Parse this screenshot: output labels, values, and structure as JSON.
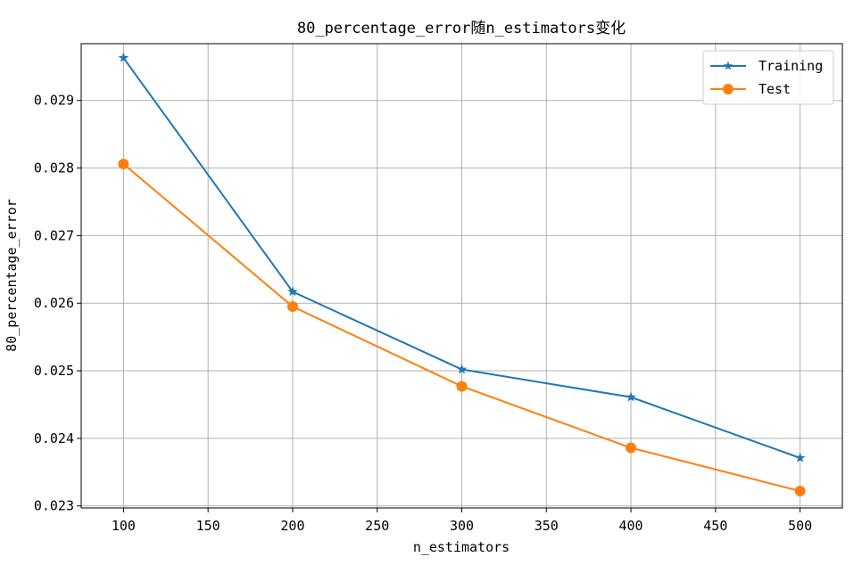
{
  "chart_data": {
    "type": "line",
    "title": "80_percentage_error随n_estimators变化",
    "xlabel": "n_estimators",
    "ylabel": "80_percentage_error",
    "x": [
      100,
      200,
      300,
      400,
      500
    ],
    "xlim": [
      75,
      525
    ],
    "ylim": [
      0.02297,
      0.02984
    ],
    "xticks": [
      "100",
      "150",
      "200",
      "250",
      "300",
      "350",
      "400",
      "450",
      "500"
    ],
    "yticks": [
      "0.023",
      "0.024",
      "0.025",
      "0.026",
      "0.027",
      "0.028",
      "0.029"
    ],
    "grid": true,
    "legend_position": "top-right",
    "series": [
      {
        "name": "Training",
        "marker": "star",
        "color": "#1f77b4",
        "values": [
          0.02963,
          0.02617,
          0.02502,
          0.02461,
          0.02371
        ]
      },
      {
        "name": "Test",
        "marker": "circle",
        "color": "#ff7f0e",
        "values": [
          0.02806,
          0.02595,
          0.02477,
          0.02386,
          0.02322
        ]
      }
    ]
  }
}
